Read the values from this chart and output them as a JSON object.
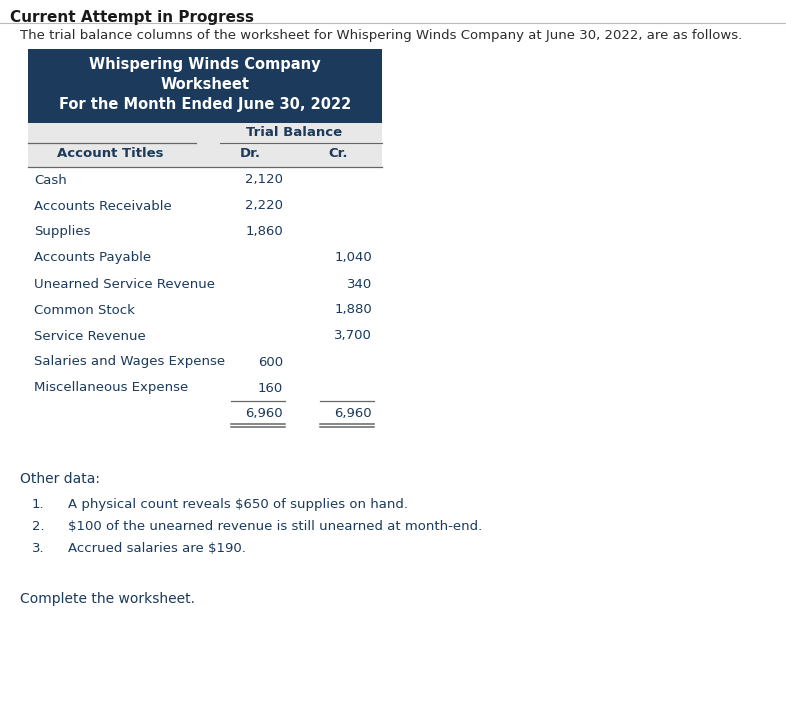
{
  "title_line1": "Whispering Winds Company",
  "title_line2": "Worksheet",
  "title_line3": "For the Month Ended June 30, 2022",
  "header_bg": "#1b3a5c",
  "header_text_color": "#ffffff",
  "subheader_bg": "#e8e8e8",
  "trial_balance_label": "Trial Balance",
  "col_dr": "Dr.",
  "col_cr": "Cr.",
  "col_account": "Account Titles",
  "accounts": [
    {
      "name": "Cash",
      "dr": "2,120",
      "cr": ""
    },
    {
      "name": "Accounts Receivable",
      "dr": "2,220",
      "cr": ""
    },
    {
      "name": "Supplies",
      "dr": "1,860",
      "cr": ""
    },
    {
      "name": "Accounts Payable",
      "dr": "",
      "cr": "1,040"
    },
    {
      "name": "Unearned Service Revenue",
      "dr": "",
      "cr": "340"
    },
    {
      "name": "Common Stock",
      "dr": "",
      "cr": "1,880"
    },
    {
      "name": "Service Revenue",
      "dr": "",
      "cr": "3,700"
    },
    {
      "name": "Salaries and Wages Expense",
      "dr": "600",
      "cr": ""
    },
    {
      "name": "Miscellaneous Expense",
      "dr": "160",
      "cr": ""
    }
  ],
  "total_dr": "6,960",
  "total_cr": "6,960",
  "top_label": "Current Attempt in Progress",
  "intro_text": "The trial balance columns of the worksheet for Whispering Winds Company at June 30, 2022, are as follows.",
  "other_data_label": "Other data:",
  "other_data": [
    "A physical count reveals $650 of supplies on hand.",
    "$100 of the unearned revenue is still unearned at month-end.",
    "Accrued salaries are $190."
  ],
  "footer_text": "Complete the worksheet.",
  "bg_color": "#ffffff",
  "text_color": "#2c2c2c",
  "table_text_color": "#1b3a5c",
  "line_color": "#666666",
  "top_label_color": "#1a1a1a",
  "other_data_color": "#1b3a5c"
}
